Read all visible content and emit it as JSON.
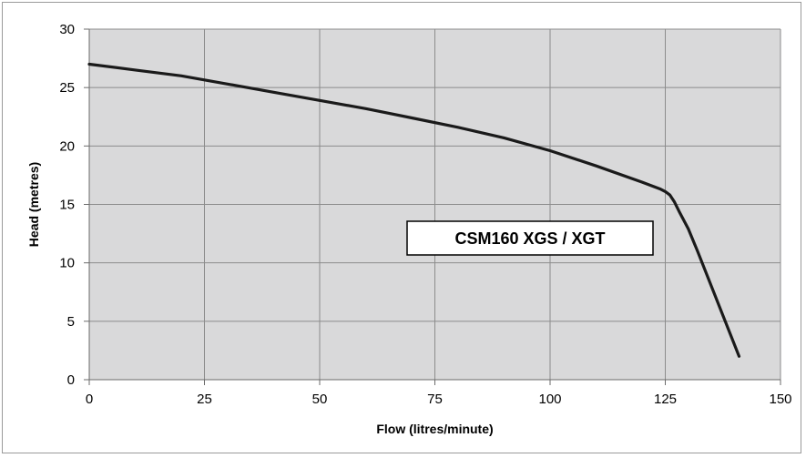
{
  "chart_data": {
    "type": "line",
    "title": "",
    "xlabel": "Flow (litres/minute)",
    "ylabel": "Head (metres)",
    "xlim": [
      0,
      150
    ],
    "ylim": [
      0,
      30
    ],
    "xticks": [
      0,
      25,
      50,
      75,
      100,
      125,
      150
    ],
    "yticks": [
      0,
      5,
      10,
      15,
      20,
      25,
      30
    ],
    "grid": true,
    "annotation": "CSM160 XGS / XGT",
    "colors": {
      "plot_bg": "#d9d9da",
      "grid": "#8c8c8c",
      "line": "#1a1a1a"
    },
    "series": [
      {
        "x": [
          0,
          10,
          20,
          30,
          40,
          50,
          60,
          70,
          80,
          90,
          100,
          110,
          120,
          124,
          125,
          126,
          127,
          128,
          130,
          132,
          135,
          138,
          141
        ],
        "y": [
          27.0,
          26.5,
          26.0,
          25.3,
          24.6,
          23.9,
          23.2,
          22.4,
          21.6,
          20.7,
          19.6,
          18.3,
          16.9,
          16.3,
          16.1,
          15.8,
          15.2,
          14.4,
          12.9,
          11.0,
          8.0,
          5.0,
          2.0
        ]
      }
    ]
  }
}
